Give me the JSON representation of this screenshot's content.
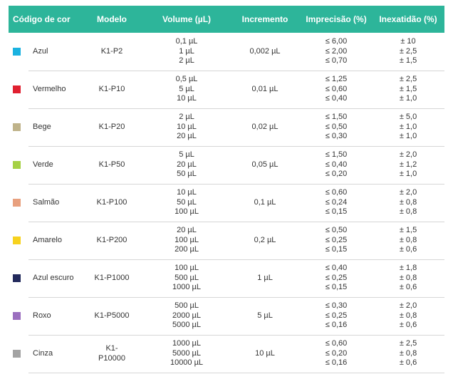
{
  "header": {
    "code": "Código de cor",
    "model": "Modelo",
    "volume": "Volume (µL)",
    "increment": "Incremento",
    "imprecision": "Imprecisão (%)",
    "inaccuracy": "Inexatidão (%)"
  },
  "rows": [
    {
      "color": "#1ab2e0",
      "name": "Azul",
      "model": "K1-P2",
      "volumes": [
        "0,1 µL",
        "1 µL",
        "2 µL"
      ],
      "increment": "0,002 µL",
      "imprecision": [
        "≤ 6,00",
        "≤ 2,00",
        "≤ 0,70"
      ],
      "inaccuracy": [
        "± 10",
        "± 2,5",
        "± 1,5"
      ]
    },
    {
      "color": "#e02030",
      "name": "Vermelho",
      "model": "K1-P10",
      "volumes": [
        "0,5 µL",
        "5 µL",
        "10 µL"
      ],
      "increment": "0,01 µL",
      "imprecision": [
        "≤ 1,25",
        "≤ 0,60",
        "≤ 0,40"
      ],
      "inaccuracy": [
        "± 2,5",
        "± 1,5",
        "± 1,0"
      ]
    },
    {
      "color": "#bfb38a",
      "name": "Bege",
      "model": "K1-P20",
      "volumes": [
        "2 µL",
        "10 µL",
        "20 µL"
      ],
      "increment": "0,02 µL",
      "imprecision": [
        "≤ 1,50",
        "≤ 0,50",
        "≤ 0,30"
      ],
      "inaccuracy": [
        "± 5,0",
        "± 1,0",
        "± 1,0"
      ]
    },
    {
      "color": "#a6d145",
      "name": "Verde",
      "model": "K1-P50",
      "volumes": [
        "5 µL",
        "20 µL",
        "50 µL"
      ],
      "increment": "0,05 µL",
      "imprecision": [
        "≤ 1,50",
        "≤ 0,40",
        "≤ 0,20"
      ],
      "inaccuracy": [
        "± 2,0",
        "± 1,2",
        "± 1,0"
      ]
    },
    {
      "color": "#e8a07e",
      "name": "Salmão",
      "model": "K1-P100",
      "volumes": [
        "10 µL",
        "50 µL",
        "100 µL"
      ],
      "increment": "0,1 µL",
      "imprecision": [
        "≤ 0,60",
        "≤ 0,24",
        "≤ 0,15"
      ],
      "inaccuracy": [
        "± 2,0",
        "± 0,8",
        "± 0,8"
      ]
    },
    {
      "color": "#f7d21e",
      "name": "Amarelo",
      "model": "K1-P200",
      "volumes": [
        "20 µL",
        "100 µL",
        "200 µL"
      ],
      "increment": "0,2 µL",
      "imprecision": [
        "≤ 0,50",
        "≤ 0,25",
        "≤ 0,15"
      ],
      "inaccuracy": [
        "± 1,5",
        "± 0,8",
        "± 0,6"
      ]
    },
    {
      "color": "#232a5c",
      "name": "Azul escuro",
      "model": "K1-P1000",
      "volumes": [
        "100 µL",
        "500 µL",
        "1000 µL"
      ],
      "increment": "1 µL",
      "imprecision": [
        "≤ 0,40",
        "≤ 0,25",
        "≤ 0,15"
      ],
      "inaccuracy": [
        "± 1,8",
        "± 0,8",
        "± 0,6"
      ]
    },
    {
      "color": "#9b6fbf",
      "name": "Roxo",
      "model": "K1-P5000",
      "volumes": [
        "500 µL",
        "2000 µL",
        "5000 µL"
      ],
      "increment": "5 µL",
      "imprecision": [
        "≤ 0,30",
        "≤ 0,25",
        "≤ 0,16"
      ],
      "inaccuracy": [
        "± 2,0",
        "± 0,8",
        "± 0,6"
      ]
    },
    {
      "color": "#a3a3a3",
      "name": "Cinza",
      "model": "K1-\nP10000",
      "volumes": [
        "1000 µL",
        "5000 µL",
        "10000 µL"
      ],
      "increment": "10 µL",
      "imprecision": [
        "≤ 0,60",
        "≤ 0,20",
        "≤ 0,16"
      ],
      "inaccuracy": [
        "± 2,5",
        "± 0,8",
        "± 0,6"
      ]
    }
  ]
}
